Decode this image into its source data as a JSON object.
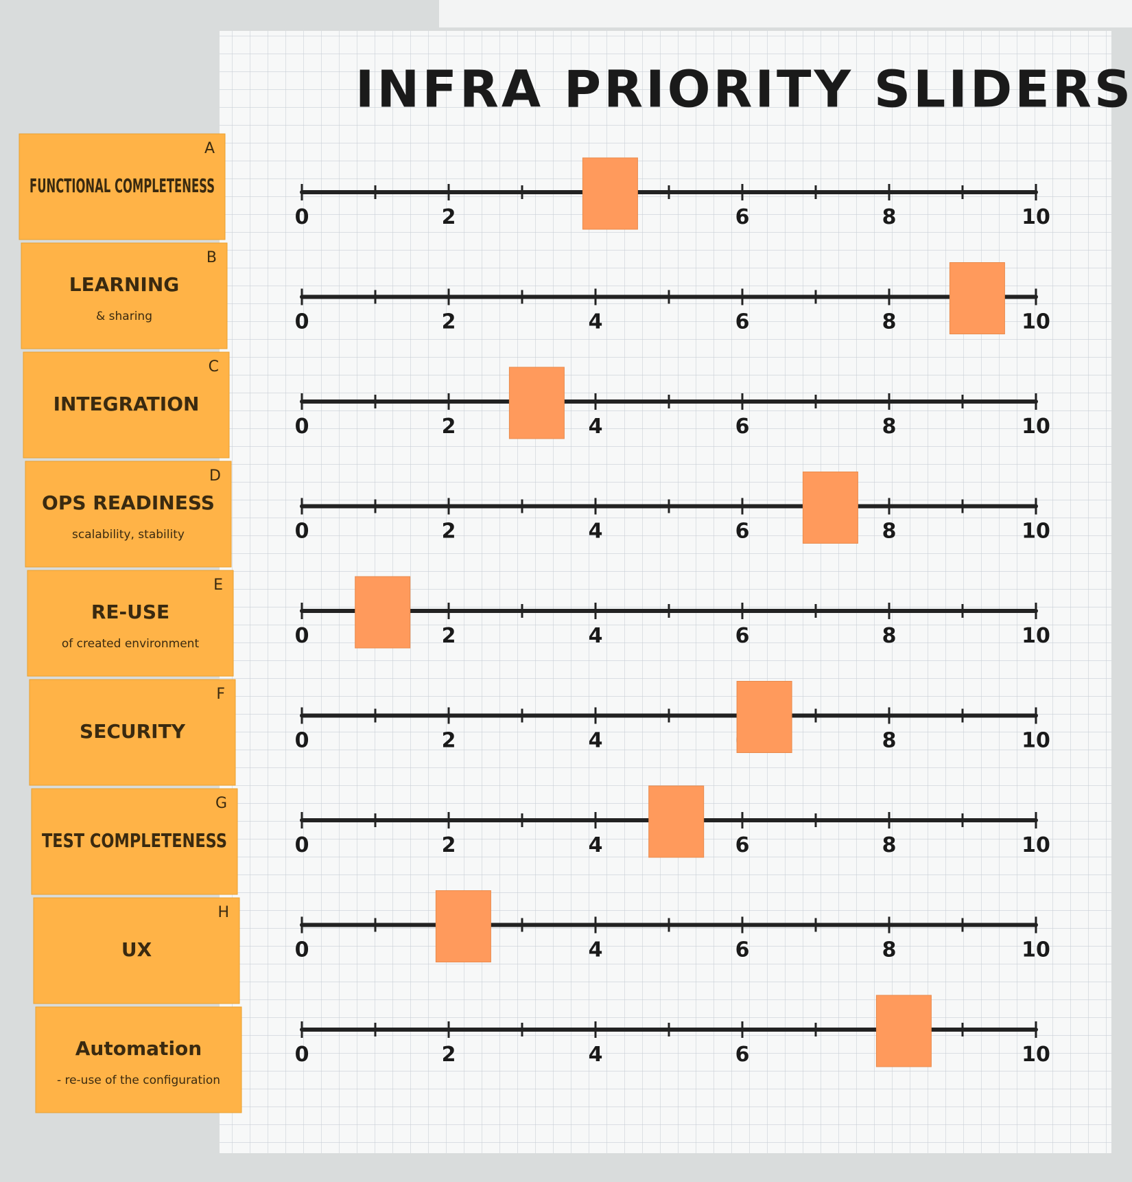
{
  "chart_data": {
    "type": "slider",
    "title": "INFRA PRIORITY SLIDERS",
    "categories": [
      "FUNCTIONAL COMPLETENESS",
      "LEARNING",
      "INTEGRATION",
      "OPS READINESS",
      "RE-USE",
      "SECURITY",
      "TEST COMPLETENESS",
      "UX",
      "Automation"
    ],
    "letters": [
      "A",
      "B",
      "C",
      "D",
      "E",
      "F",
      "G",
      "H",
      null
    ],
    "subtitles": [
      null,
      "& sharing",
      null,
      "scalability, stability",
      "of created environment",
      null,
      null,
      null,
      "- re-use of the configuration"
    ],
    "values": [
      4.2,
      9.2,
      3.2,
      7.2,
      1.1,
      6.3,
      5.1,
      2.2,
      8.2
    ],
    "color": "#ff9a5c",
    "note_color": "#ffb347",
    "xlim": [
      0,
      10
    ],
    "xticks": [
      0,
      2,
      4,
      6,
      8,
      10
    ],
    "minor_xticks": [
      1,
      3,
      5,
      7,
      9
    ],
    "grid": true
  }
}
